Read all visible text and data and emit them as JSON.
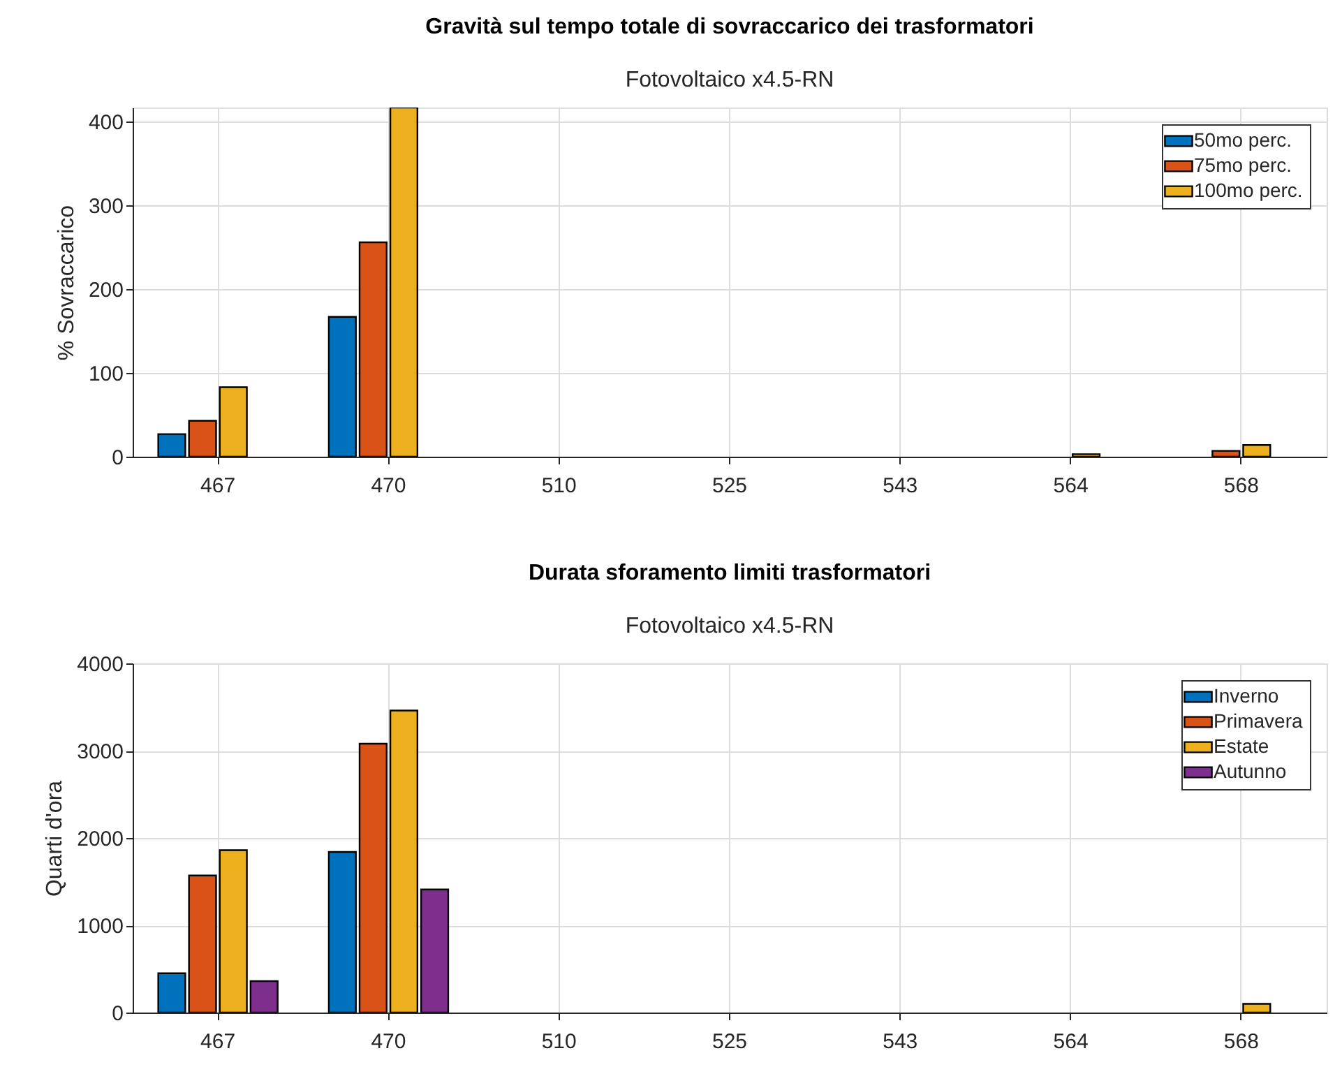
{
  "chart_data": [
    {
      "type": "bar",
      "title": "Gravità sul tempo totale di sovraccarico dei trasformatori",
      "subtitle": "Fotovoltaico x4.5-RN",
      "ylabel": "% Sovraccarico",
      "categories": [
        "467",
        "470",
        "510",
        "525",
        "543",
        "564",
        "568"
      ],
      "series": [
        {
          "name": "50mo perc.",
          "color": "#0072bd",
          "values": [
            27,
            167,
            null,
            null,
            null,
            null,
            null
          ]
        },
        {
          "name": "75mo perc.",
          "color": "#d95319",
          "values": [
            43,
            256,
            null,
            null,
            null,
            null,
            7
          ]
        },
        {
          "name": "100mo perc.",
          "color": "#edb120",
          "values": [
            83,
            417,
            null,
            null,
            null,
            3,
            14
          ]
        }
      ],
      "ylim": [
        0,
        417
      ],
      "yticks": [
        0,
        100,
        200,
        300,
        400
      ],
      "grid": true,
      "legend": "top right"
    },
    {
      "type": "bar",
      "title": "Durata sforamento limiti trasformatori",
      "subtitle": "Fotovoltaico x4.5-RN",
      "ylabel": "Quarti d'ora",
      "categories": [
        "467",
        "470",
        "510",
        "525",
        "543",
        "564",
        "568"
      ],
      "series": [
        {
          "name": "Inverno",
          "color": "#0072bd",
          "values": [
            450,
            1840,
            null,
            null,
            null,
            null,
            null
          ]
        },
        {
          "name": "Primavera",
          "color": "#d95319",
          "values": [
            1570,
            3080,
            null,
            null,
            null,
            null,
            null
          ]
        },
        {
          "name": "Estate",
          "color": "#edb120",
          "values": [
            1860,
            3460,
            null,
            null,
            null,
            null,
            100
          ]
        },
        {
          "name": "Autunno",
          "color": "#7e2f8e",
          "values": [
            360,
            1410,
            null,
            null,
            null,
            null,
            null
          ]
        }
      ],
      "ylim": [
        0,
        4000
      ],
      "yticks": [
        0,
        1000,
        2000,
        3000,
        4000
      ],
      "grid": true,
      "legend": "top right"
    }
  ]
}
